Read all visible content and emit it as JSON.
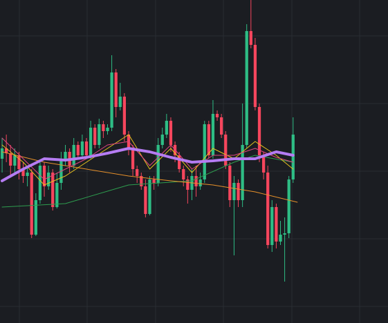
{
  "chart_data": {
    "type": "candlestick",
    "xlim": [
      -0.5,
      91.5
    ],
    "ylim": [
      0,
      468
    ],
    "up_color": "#2ebd85",
    "down_color": "#f6465d",
    "open": [
      238,
      253,
      246,
      228,
      243,
      223,
      213,
      218,
      128,
      178,
      228,
      198,
      218,
      168,
      203,
      238,
      248,
      228,
      258,
      243,
      263,
      243,
      283,
      258,
      288,
      278,
      283,
      363,
      313,
      328,
      273,
      253,
      223,
      213,
      198,
      158,
      208,
      203,
      258,
      273,
      293,
      258,
      243,
      223,
      208,
      193,
      213,
      198,
      208,
      288,
      243,
      303,
      298,
      273,
      228,
      178,
      203,
      178,
      258,
      423,
      403,
      313,
      243,
      218,
      113,
      168,
      118,
      128,
      130,
      208
    ],
    "high": [
      268,
      273,
      258,
      253,
      248,
      233,
      228,
      223,
      188,
      233,
      233,
      228,
      223,
      218,
      248,
      258,
      253,
      268,
      263,
      273,
      268,
      293,
      288,
      296,
      293,
      288,
      388,
      368,
      348,
      333,
      278,
      258,
      228,
      218,
      208,
      213,
      213,
      268,
      283,
      303,
      298,
      263,
      248,
      228,
      213,
      223,
      228,
      218,
      293,
      293,
      323,
      308,
      303,
      278,
      233,
      213,
      208,
      318,
      433,
      468,
      413,
      318,
      248,
      228,
      178,
      173,
      148,
      153,
      213,
      298
    ],
    "low": [
      218,
      233,
      213,
      218,
      208,
      203,
      198,
      123,
      126,
      173,
      183,
      193,
      163,
      166,
      193,
      228,
      218,
      223,
      238,
      238,
      238,
      238,
      253,
      253,
      268,
      273,
      278,
      298,
      308,
      263,
      243,
      213,
      203,
      193,
      153,
      156,
      193,
      198,
      253,
      268,
      248,
      233,
      218,
      198,
      173,
      178,
      183,
      193,
      203,
      238,
      238,
      293,
      268,
      223,
      168,
      98,
      168,
      168,
      253,
      398,
      308,
      233,
      208,
      108,
      103,
      108,
      113,
      60,
      123,
      203
    ],
    "close": [
      253,
      246,
      228,
      243,
      223,
      213,
      218,
      128,
      178,
      228,
      198,
      218,
      168,
      203,
      238,
      248,
      228,
      258,
      243,
      263,
      243,
      283,
      258,
      288,
      278,
      283,
      363,
      313,
      328,
      273,
      253,
      223,
      213,
      198,
      158,
      208,
      203,
      258,
      273,
      293,
      258,
      243,
      223,
      208,
      193,
      213,
      198,
      208,
      288,
      243,
      303,
      298,
      273,
      228,
      178,
      203,
      178,
      258,
      423,
      403,
      313,
      243,
      218,
      113,
      168,
      118,
      128,
      130,
      208,
      273
    ],
    "series": [
      {
        "color": "#2e9e4f",
        "x": [
          0,
          15,
          30,
          45,
          55,
          60,
          69
        ],
        "values": [
          168,
          173,
          200,
          206,
          233,
          243,
          233
        ],
        "width": 1
      },
      {
        "color": "#e8912a",
        "x": [
          0,
          10,
          20,
          30,
          40,
          50,
          60,
          70
        ],
        "values": [
          248,
          233,
          223,
          213,
          206,
          200,
          190,
          175
        ],
        "width": 1
      },
      {
        "color": "#e6c21d",
        "x": [
          0,
          5,
          10,
          15,
          20,
          25,
          30,
          35,
          40,
          45,
          50,
          55,
          60,
          65,
          69
        ],
        "values": [
          258,
          233,
          200,
          213,
          233,
          253,
          273,
          223,
          253,
          218,
          253,
          238,
          263,
          243,
          223
        ],
        "width": 1
      },
      {
        "color": "#e0457f",
        "x": [
          0,
          5,
          10,
          15,
          20,
          25,
          30,
          35,
          40,
          45,
          50,
          55,
          60,
          65,
          69
        ],
        "values": [
          268,
          238,
          208,
          223,
          238,
          258,
          263,
          228,
          258,
          223,
          243,
          243,
          253,
          240,
          233
        ],
        "width": 1
      },
      {
        "color": "#b57cf2",
        "x": [
          0,
          5,
          10,
          15,
          20,
          25,
          30,
          35,
          40,
          45,
          50,
          55,
          60,
          65,
          69
        ],
        "values": [
          206,
          223,
          238,
          236,
          240,
          246,
          253,
          248,
          240,
          233,
          235,
          238,
          238,
          248,
          243
        ],
        "width": 4
      }
    ]
  }
}
